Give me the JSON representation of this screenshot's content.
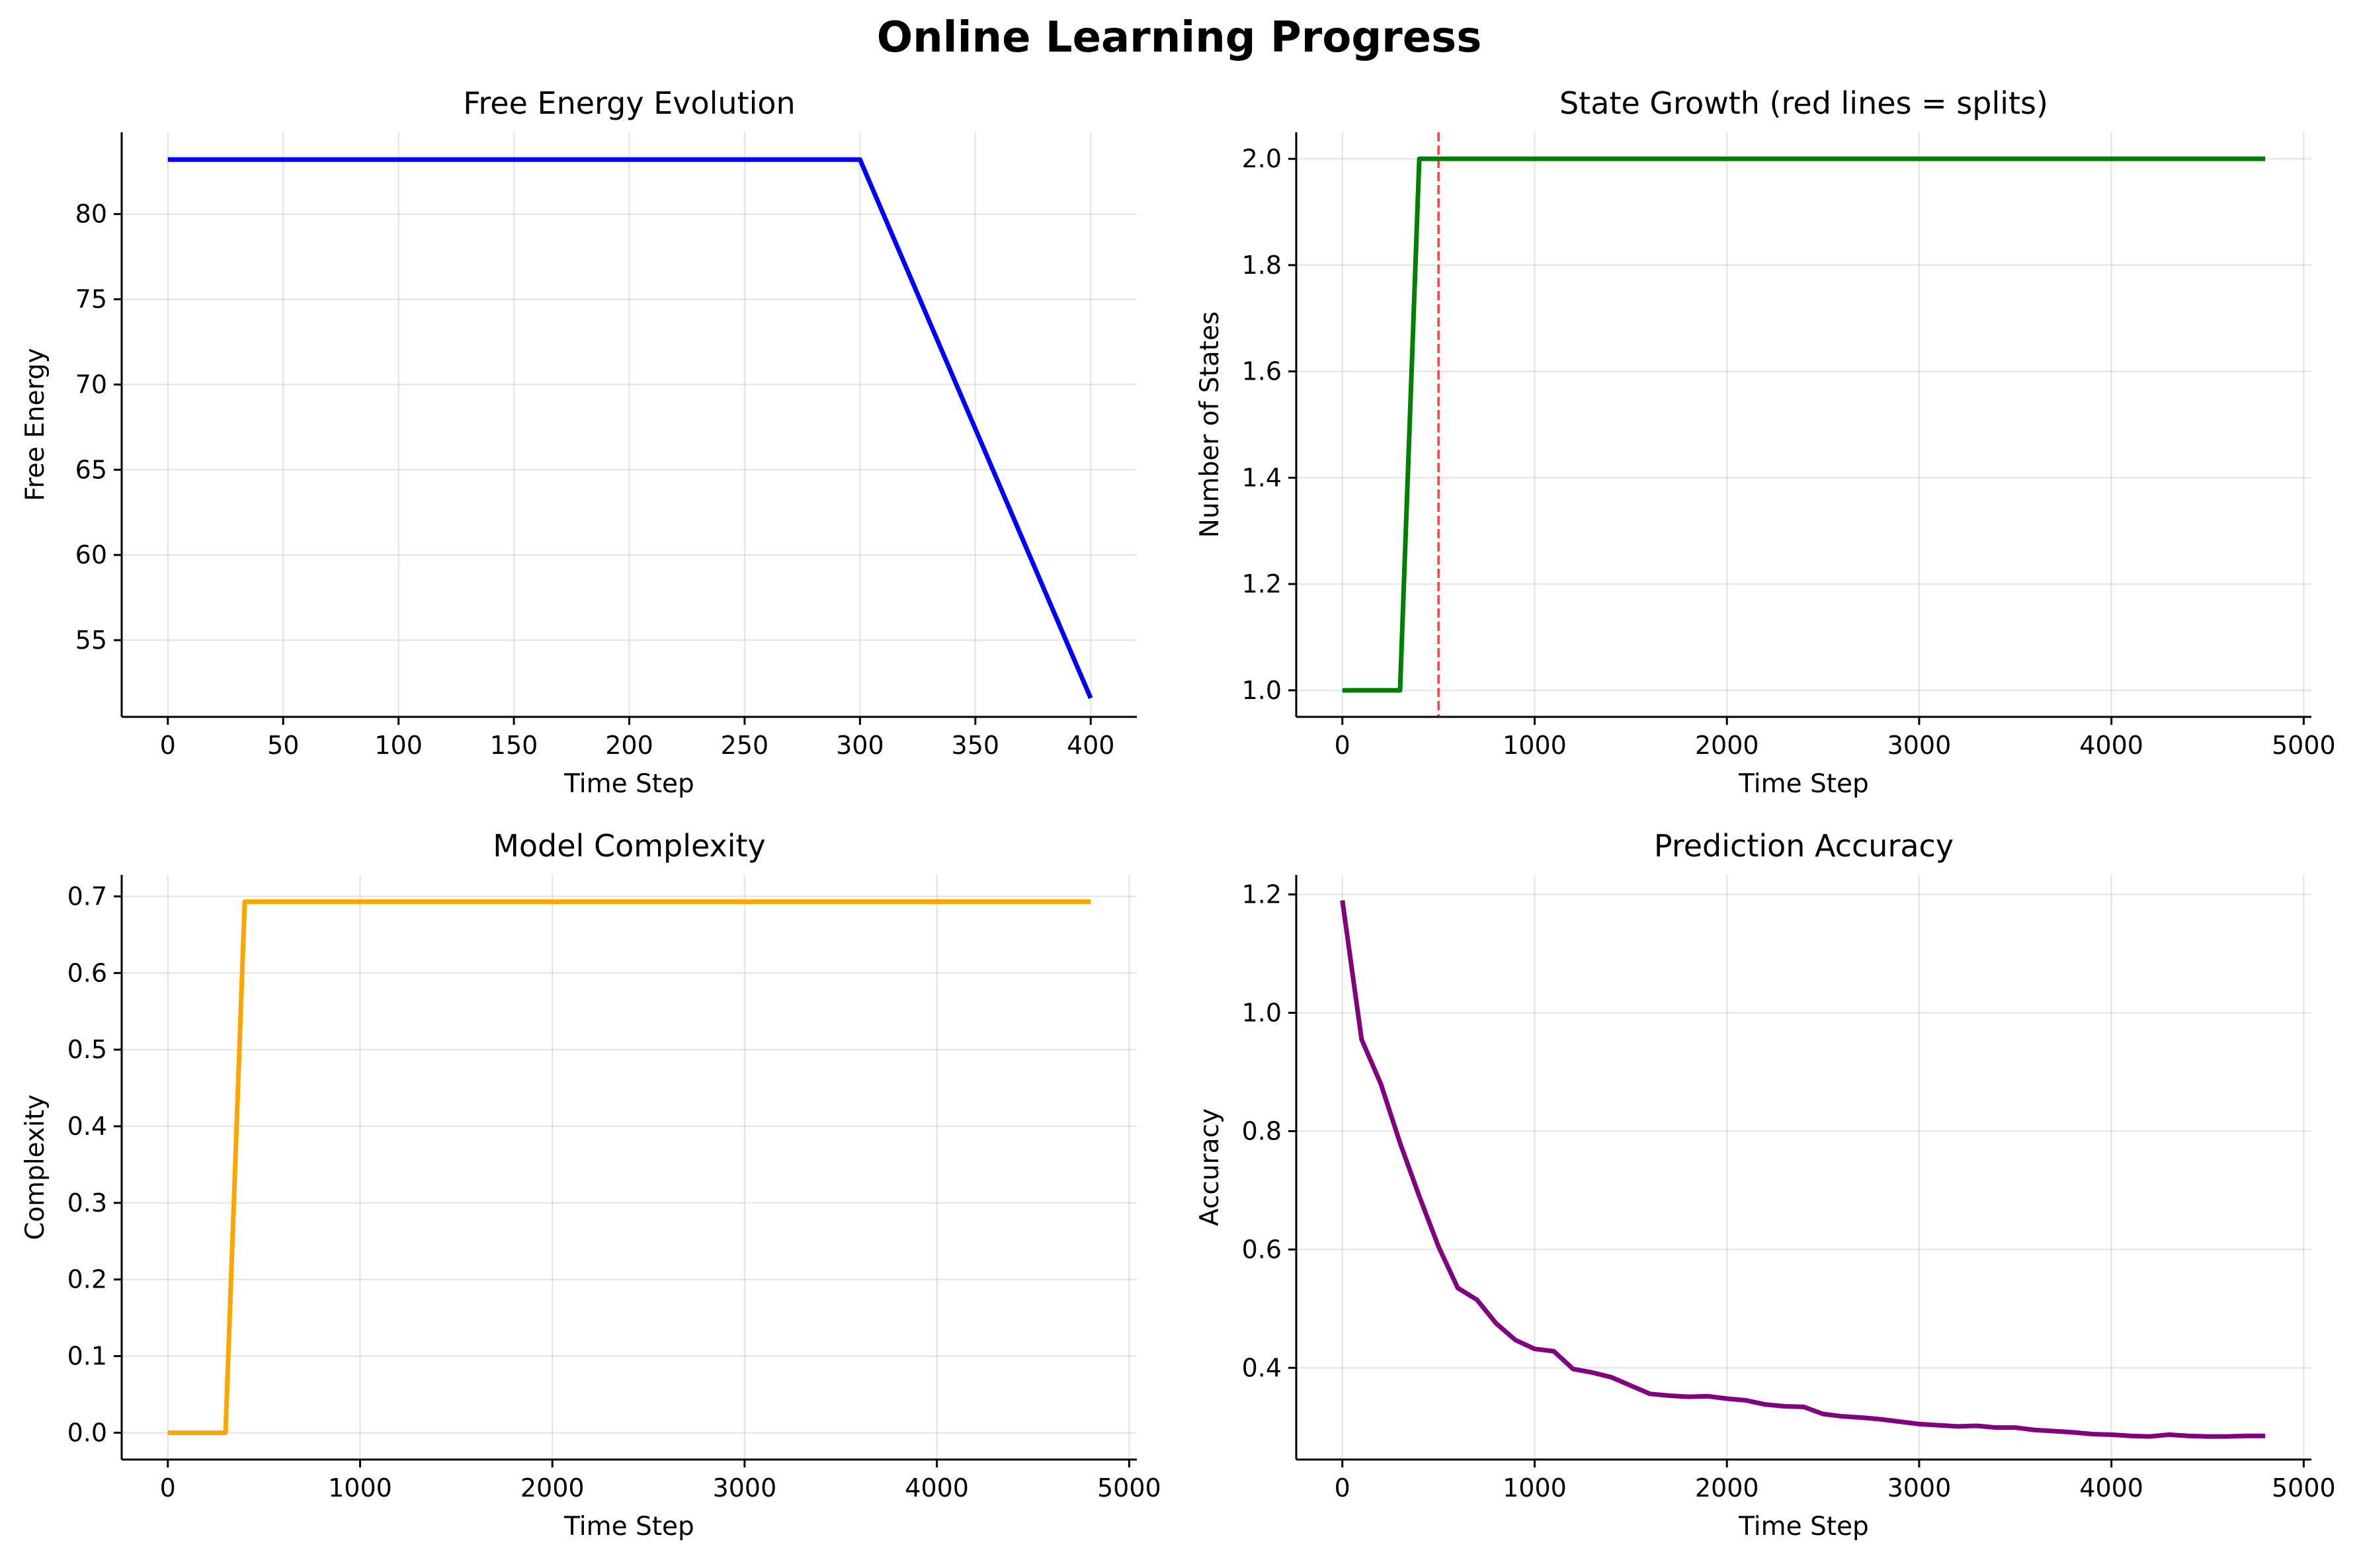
{
  "figure": {
    "suptitle": "Online Learning Progress"
  },
  "chart_data": [
    {
      "id": "free_energy",
      "type": "line",
      "title": "Free Energy Evolution",
      "xlabel": "Time Step",
      "ylabel": "Free Energy",
      "xlim": [
        -20,
        420
      ],
      "ylim": [
        50.5,
        84.8
      ],
      "xticks": [
        0,
        50,
        100,
        150,
        200,
        250,
        300,
        350,
        400
      ],
      "xtick_labels": [
        "0",
        "50",
        "100",
        "150",
        "200",
        "250",
        "300",
        "350",
        "400"
      ],
      "yticks": [
        55,
        60,
        65,
        70,
        75,
        80
      ],
      "ytick_labels": [
        "55",
        "60",
        "65",
        "70",
        "75",
        "80"
      ],
      "grid": true,
      "series": [
        {
          "color": "#0000ff",
          "x": [
            0,
            100,
            200,
            300,
            400
          ],
          "y": [
            83.2,
            83.2,
            83.2,
            83.2,
            51.6
          ]
        }
      ]
    },
    {
      "id": "state_growth",
      "type": "line",
      "title": "State Growth (red lines = splits)",
      "xlabel": "Time Step",
      "ylabel": "Number of States",
      "xlim": [
        -240,
        5040
      ],
      "ylim": [
        0.95,
        2.05
      ],
      "xticks": [
        0,
        1000,
        2000,
        3000,
        4000,
        5000
      ],
      "xtick_labels": [
        "0",
        "1000",
        "2000",
        "3000",
        "4000",
        "5000"
      ],
      "yticks": [
        1.0,
        1.2,
        1.4,
        1.6,
        1.8,
        2.0
      ],
      "ytick_labels": [
        "1.0",
        "1.2",
        "1.4",
        "1.6",
        "1.8",
        "2.0"
      ],
      "grid": true,
      "series": [
        {
          "color": "#008000",
          "x": [
            0,
            100,
            200,
            300,
            400,
            4800
          ],
          "y": [
            1,
            1,
            1,
            1,
            2,
            2
          ]
        }
      ],
      "vlines": [
        {
          "x": 500,
          "color": "#ff0000",
          "style": "dashed"
        }
      ]
    },
    {
      "id": "model_complexity",
      "type": "line",
      "title": "Model Complexity",
      "xlabel": "Time Step",
      "ylabel": "Complexity",
      "xlim": [
        -240,
        5040
      ],
      "ylim": [
        -0.035,
        0.728
      ],
      "xticks": [
        0,
        1000,
        2000,
        3000,
        4000,
        5000
      ],
      "xtick_labels": [
        "0",
        "1000",
        "2000",
        "3000",
        "4000",
        "5000"
      ],
      "yticks": [
        0.0,
        0.1,
        0.2,
        0.3,
        0.4,
        0.5,
        0.6,
        0.7
      ],
      "ytick_labels": [
        "0.0",
        "0.1",
        "0.2",
        "0.3",
        "0.4",
        "0.5",
        "0.6",
        "0.7"
      ],
      "grid": true,
      "series": [
        {
          "color": "#ffa500",
          "x": [
            0,
            100,
            200,
            300,
            400,
            4800
          ],
          "y": [
            0,
            0,
            0,
            0,
            0.693,
            0.693
          ]
        }
      ]
    },
    {
      "id": "prediction_accuracy",
      "type": "line",
      "title": "Prediction Accuracy",
      "xlabel": "Time Step",
      "ylabel": "Accuracy",
      "xlim": [
        -240,
        5040
      ],
      "ylim": [
        0.245,
        1.233
      ],
      "xticks": [
        0,
        1000,
        2000,
        3000,
        4000,
        5000
      ],
      "xtick_labels": [
        "0",
        "1000",
        "2000",
        "3000",
        "4000",
        "5000"
      ],
      "yticks": [
        0.4,
        0.6,
        0.8,
        1.0,
        1.2
      ],
      "ytick_labels": [
        "0.4",
        "0.6",
        "0.8",
        "1.0",
        "1.2"
      ],
      "grid": true,
      "series": [
        {
          "color": "#800080",
          "x": [
            0,
            100,
            200,
            300,
            400,
            500,
            600,
            700,
            800,
            900,
            1000,
            1100,
            1200,
            1300,
            1400,
            1500,
            1600,
            1700,
            1800,
            1900,
            2000,
            2100,
            2200,
            2300,
            2400,
            2500,
            2600,
            2700,
            2800,
            2900,
            3000,
            3100,
            3200,
            3300,
            3400,
            3500,
            3600,
            3700,
            3800,
            3900,
            4000,
            4100,
            4200,
            4300,
            4400,
            4500,
            4600,
            4700,
            4800
          ],
          "y": [
            1.19,
            0.955,
            0.88,
            0.78,
            0.69,
            0.605,
            0.535,
            0.515,
            0.475,
            0.447,
            0.432,
            0.428,
            0.398,
            0.392,
            0.384,
            0.37,
            0.356,
            0.353,
            0.351,
            0.352,
            0.348,
            0.345,
            0.338,
            0.335,
            0.334,
            0.322,
            0.318,
            0.316,
            0.313,
            0.309,
            0.305,
            0.303,
            0.301,
            0.302,
            0.299,
            0.299,
            0.295,
            0.293,
            0.291,
            0.288,
            0.287,
            0.285,
            0.284,
            0.287,
            0.285,
            0.284,
            0.284,
            0.285,
            0.285
          ]
        }
      ]
    }
  ]
}
